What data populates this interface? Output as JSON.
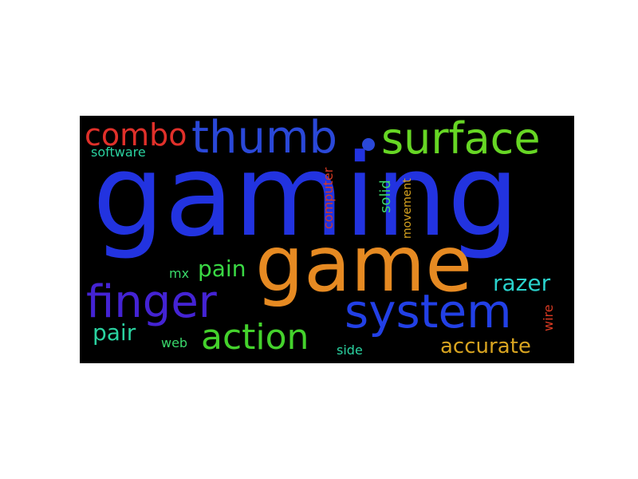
{
  "words": {
    "gaming": {
      "text": "gaming",
      "color": "#2233e0"
    },
    "game": {
      "text": "game",
      "color": "#e68a22"
    },
    "thumb": {
      "text": "thumb",
      "color": "#2a48d8"
    },
    "surface": {
      "text": "surface",
      "color": "#66d624"
    },
    "finger": {
      "text": "finger",
      "color": "#4423d4"
    },
    "system": {
      "text": "system",
      "color": "#2240e6"
    },
    "action": {
      "text": "action",
      "color": "#44d22c"
    },
    "combo": {
      "text": "combo",
      "color": "#e0302a"
    },
    "pain": {
      "text": "pain",
      "color": "#3ad844"
    },
    "razer": {
      "text": "razer",
      "color": "#2ad2cc"
    },
    "pair": {
      "text": "pair",
      "color": "#2ad2a0"
    },
    "accurate": {
      "text": "accurate",
      "color": "#d8a420"
    },
    "software": {
      "text": "software",
      "color": "#2ad2a0"
    },
    "computer": {
      "text": "computer",
      "color": "#d83a22"
    },
    "solid": {
      "text": "solid",
      "color": "#3ad86a"
    },
    "movement": {
      "text": "movement",
      "color": "#d8a420"
    },
    "mx": {
      "text": "mx",
      "color": "#3ad86a"
    },
    "web": {
      "text": "web",
      "color": "#3ad86a"
    },
    "side": {
      "text": "side",
      "color": "#2ad2a0"
    },
    "wire": {
      "text": "wire",
      "color": "#d83a22"
    }
  },
  "dot_color": "#2a48d8"
}
